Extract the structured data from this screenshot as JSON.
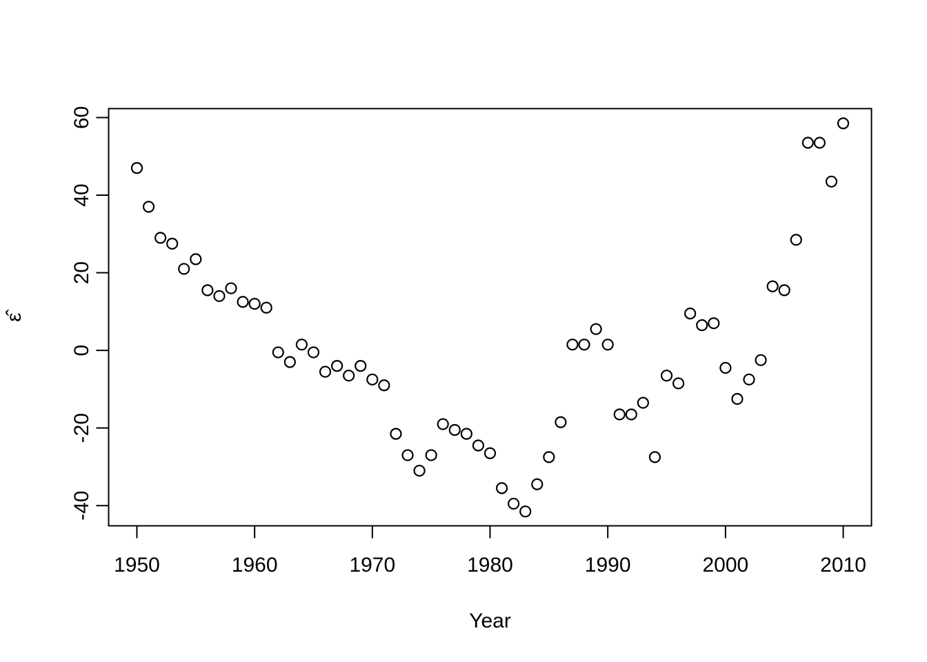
{
  "chart_data": {
    "type": "scatter",
    "title": "",
    "xlabel": "Year",
    "ylabel": "ε̂",
    "marker": "open-circle",
    "grid": false,
    "legend": "none",
    "xlim": [
      1947.6,
      2012.4
    ],
    "ylim": [
      -45.2,
      62.3
    ],
    "x_ticks": [
      1950,
      1960,
      1970,
      1980,
      1990,
      2000,
      2010
    ],
    "x_tick_labels": [
      "1950",
      "1960",
      "1970",
      "1980",
      "1990",
      "2000",
      "2010"
    ],
    "y_ticks": [
      -40,
      -20,
      0,
      20,
      40,
      60
    ],
    "y_tick_labels": [
      "-40",
      "-20",
      "0",
      "20",
      "40",
      "60"
    ],
    "x": [
      1950,
      1951,
      1952,
      1953,
      1954,
      1955,
      1956,
      1957,
      1958,
      1959,
      1960,
      1961,
      1962,
      1963,
      1964,
      1965,
      1966,
      1967,
      1968,
      1969,
      1970,
      1971,
      1972,
      1973,
      1974,
      1975,
      1976,
      1977,
      1978,
      1979,
      1980,
      1981,
      1982,
      1983,
      1984,
      1985,
      1986,
      1987,
      1988,
      1989,
      1990,
      1991,
      1992,
      1993,
      1994,
      1995,
      1996,
      1997,
      1998,
      1999,
      2000,
      2001,
      2002,
      2003,
      2004,
      2005,
      2006,
      2007,
      2008,
      2009,
      2010
    ],
    "y": [
      47,
      37,
      29,
      27.5,
      21,
      23.5,
      15.5,
      14,
      16,
      12.5,
      12,
      11,
      -0.5,
      -3,
      1.5,
      -0.5,
      -5.5,
      -4,
      -6.5,
      -4,
      -7.5,
      -9,
      -21.5,
      -27,
      -31,
      -27,
      -19,
      -20.5,
      -21.5,
      -24.5,
      -26.5,
      -35.5,
      -39.5,
      -41.5,
      -34.5,
      -27.5,
      -18.5,
      1.5,
      1.5,
      5.5,
      1.5,
      -16.5,
      -16.5,
      -13.5,
      -27.5,
      -6.5,
      -8.5,
      9.5,
      6.5,
      7,
      -4.5,
      -12.5,
      -7.5,
      -2.5,
      16.5,
      15.5,
      28.5,
      53.5,
      53.5,
      43.5,
      58.5
    ],
    "colors": {
      "marker_stroke": "#000000",
      "axis": "#000000",
      "background": "#ffffff"
    }
  }
}
